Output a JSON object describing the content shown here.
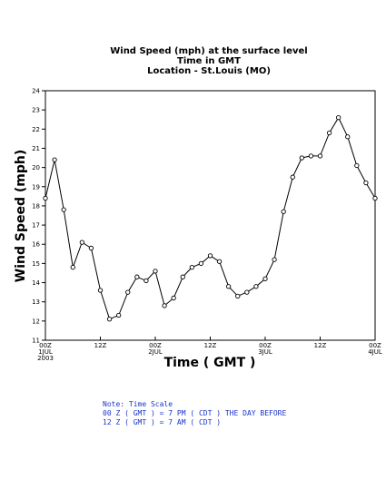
{
  "chart_data": {
    "type": "line",
    "title_lines": [
      "Wind Speed (mph) at the surface level",
      "Time in GMT",
      "Location - St.Louis (MO)"
    ],
    "xlabel": "Time ( GMT )",
    "ylabel": "Wind Speed (mph)",
    "ylim": [
      11,
      24
    ],
    "yticks": [
      11,
      12,
      13,
      14,
      15,
      16,
      17,
      18,
      19,
      20,
      21,
      22,
      23,
      24
    ],
    "xlim": [
      0,
      72
    ],
    "xticks": [
      {
        "x": 0,
        "lines": [
          "00Z",
          "1JUL",
          "2003"
        ]
      },
      {
        "x": 12,
        "lines": [
          "12Z"
        ]
      },
      {
        "x": 24,
        "lines": [
          "00Z",
          "2JUL"
        ]
      },
      {
        "x": 36,
        "lines": [
          "12Z"
        ]
      },
      {
        "x": 48,
        "lines": [
          "00Z",
          "3JUL"
        ]
      },
      {
        "x": 60,
        "lines": [
          "12Z"
        ]
      },
      {
        "x": 72,
        "lines": [
          "00Z",
          "4JUL"
        ]
      }
    ],
    "grid": false,
    "series": [
      {
        "x": [
          0,
          2,
          4,
          6,
          8,
          10,
          12,
          14,
          16,
          18,
          20,
          22,
          24,
          26,
          28,
          30,
          32,
          34,
          36,
          38,
          40,
          42,
          44,
          46,
          48,
          50,
          52,
          54,
          56,
          58,
          60,
          62,
          64,
          66,
          68,
          70,
          72
        ],
        "y": [
          18.4,
          20.4,
          17.8,
          14.8,
          16.1,
          15.8,
          13.6,
          12.1,
          12.3,
          13.5,
          14.3,
          14.1,
          14.6,
          12.8,
          13.2,
          14.3,
          14.8,
          15.0,
          15.4,
          15.1,
          13.8,
          13.3,
          13.5,
          13.8,
          14.2,
          15.2,
          17.7,
          19.5,
          20.5,
          20.6,
          20.6,
          21.8,
          22.6,
          21.6,
          20.1,
          19.2,
          18.4
        ]
      }
    ]
  },
  "note": {
    "heading": "Note: Time Scale",
    "line1": "00 Z ( GMT ) = 7 PM ( CDT ) THE DAY BEFORE",
    "line2": "12 Z ( GMT ) = 7 AM ( CDT )"
  },
  "colors": {
    "line": "#000000",
    "note_text": "#1a35c8"
  }
}
